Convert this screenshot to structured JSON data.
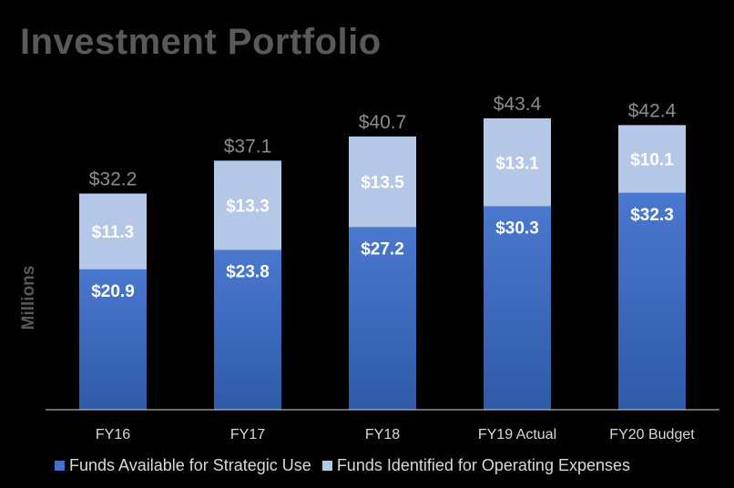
{
  "title": "Investment Portfolio",
  "chart_data": {
    "type": "bar",
    "stacked": true,
    "title": "Investment Portfolio",
    "xlabel": "",
    "ylabel": "Millions",
    "categories": [
      "FY16",
      "FY17",
      "FY18",
      "FY19 Actual",
      "FY20 Budget"
    ],
    "series": [
      {
        "name": "Funds Available for Strategic Use",
        "values": [
          20.9,
          23.8,
          27.2,
          30.3,
          32.3
        ],
        "labels": [
          "$20.9",
          "$23.8",
          "$27.2",
          "$30.3",
          "$32.3"
        ],
        "color": "#4472c4"
      },
      {
        "name": "Funds Identified for Operating Expenses",
        "values": [
          11.3,
          13.3,
          13.5,
          13.1,
          10.1
        ],
        "labels": [
          "$11.3",
          "$13.3",
          "$13.5",
          "$13.1",
          "$10.1"
        ],
        "color": "#b4c7e7"
      }
    ],
    "totals": [
      32.2,
      37.1,
      40.7,
      43.4,
      42.4
    ],
    "total_labels": [
      "$32.2",
      "$37.1",
      "$40.7",
      "$43.4",
      "$42.4"
    ],
    "ylim": [
      0,
      43.4
    ],
    "grid": false,
    "legend": "bottom"
  }
}
